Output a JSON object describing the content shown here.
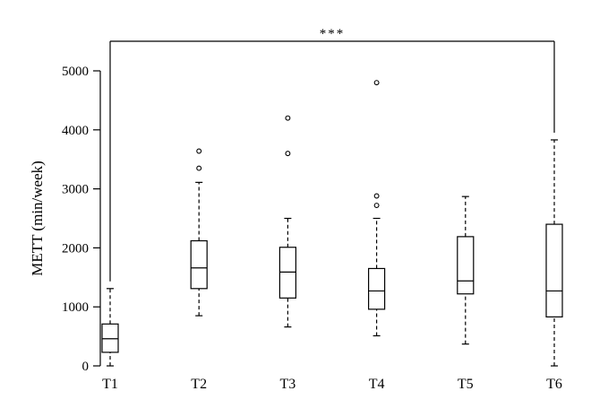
{
  "chart_data": {
    "type": "boxplot",
    "title": "",
    "xlabel": "",
    "ylabel": "METT (min/week)",
    "ylim": [
      0,
      5000
    ],
    "yticks": [
      0,
      1000,
      2000,
      3000,
      4000,
      5000
    ],
    "categories": [
      "T1",
      "T2",
      "T3",
      "T4",
      "T5",
      "T6"
    ],
    "boxes": [
      {
        "category": "T1",
        "min": 0,
        "q1": 230,
        "median": 460,
        "q3": 710,
        "max": 1310,
        "outliers": []
      },
      {
        "category": "T2",
        "min": 850,
        "q1": 1310,
        "median": 1660,
        "q3": 2120,
        "max": 3110,
        "outliers": [
          3350,
          3640
        ]
      },
      {
        "category": "T3",
        "min": 660,
        "q1": 1150,
        "median": 1590,
        "q3": 2010,
        "max": 2500,
        "outliers": [
          3600,
          4200
        ]
      },
      {
        "category": "T4",
        "min": 510,
        "q1": 960,
        "median": 1270,
        "q3": 1650,
        "max": 2500,
        "outliers": [
          2720,
          2880,
          4800
        ]
      },
      {
        "category": "T5",
        "min": 370,
        "q1": 1220,
        "median": 1440,
        "q3": 2190,
        "max": 2870,
        "outliers": []
      },
      {
        "category": "T6",
        "min": 0,
        "q1": 830,
        "median": 1270,
        "q3": 2400,
        "max": 3830,
        "outliers": []
      }
    ],
    "significance": {
      "from": "T1",
      "to": "T6",
      "label": "***"
    },
    "grid": false
  }
}
